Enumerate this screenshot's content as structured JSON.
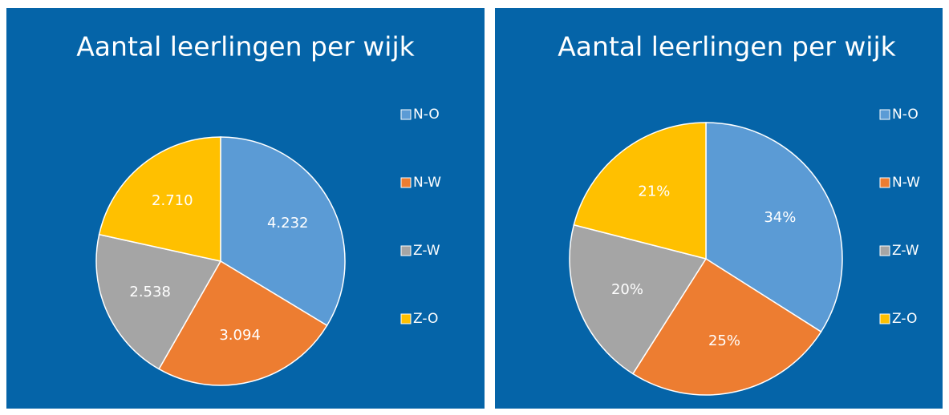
{
  "chart_data": [
    {
      "type": "pie",
      "title": "Aantal leerlingen per wijk",
      "categories": [
        "N-O",
        "N-W",
        "Z-W",
        "Z-O"
      ],
      "values": [
        4232,
        3094,
        2538,
        2710
      ],
      "value_labels": [
        "4.232",
        "3.094",
        "2.538",
        "2.710"
      ],
      "colors": [
        "#5b9bd5",
        "#ed7d31",
        "#a5a5a5",
        "#ffc000"
      ],
      "legend": "right"
    },
    {
      "type": "pie",
      "title": "Aantal leerlingen per wijk",
      "categories": [
        "N-O",
        "N-W",
        "Z-W",
        "Z-O"
      ],
      "values": [
        34,
        25,
        20,
        21
      ],
      "value_labels": [
        "34%",
        "25%",
        "20%",
        "21%"
      ],
      "colors": [
        "#5b9bd5",
        "#ed7d31",
        "#a5a5a5",
        "#ffc000"
      ],
      "legend": "right"
    }
  ]
}
